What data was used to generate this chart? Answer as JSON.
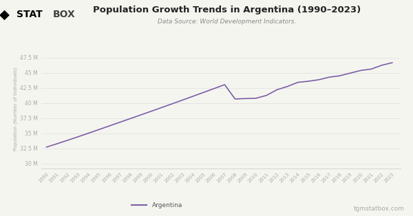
{
  "title": "Population Growth Trends in Argentina (1990–2023)",
  "subtitle": "Data Source: World Development Indicators.",
  "ylabel": "Population (Number of Individuals)",
  "line_color": "#7b5ea7",
  "line_width": 1.2,
  "background_color": "#f5f5f0",
  "legend_label": "Argentina",
  "watermark": "tgmstatbox.com",
  "years": [
    1990,
    1991,
    1992,
    1993,
    1994,
    1995,
    1996,
    1997,
    1998,
    1999,
    2000,
    2001,
    2002,
    2003,
    2004,
    2005,
    2006,
    2007,
    2008,
    2009,
    2010,
    2011,
    2012,
    2013,
    2014,
    2015,
    2016,
    2017,
    2018,
    2019,
    2020,
    2021,
    2022,
    2023
  ],
  "population": [
    32729600,
    33280245,
    33847640,
    34428012,
    35021948,
    35620750,
    36223480,
    36828440,
    37434350,
    38039950,
    38648380,
    39261350,
    39878750,
    40501400,
    41128200,
    41757070,
    42390000,
    43026400,
    40665700,
    40734000,
    40788453,
    41261490,
    42192500,
    42735200,
    43416800,
    43590400,
    43847430,
    44272138,
    44494502,
    44938712,
    45376763,
    45605826,
    46234830,
    46654581
  ],
  "yticks": [
    30000000,
    32500000,
    35000000,
    37500000,
    40000000,
    42500000,
    45000000,
    47500000
  ],
  "ytick_labels": [
    "30 M",
    "32.5 M",
    "35 M",
    "37.5 M",
    "40 M",
    "42.5 M",
    "45 M",
    "47.5 M"
  ],
  "ylim": [
    29200000,
    48800000
  ],
  "xlim_left": 1989.5,
  "xlim_right": 2023.8
}
